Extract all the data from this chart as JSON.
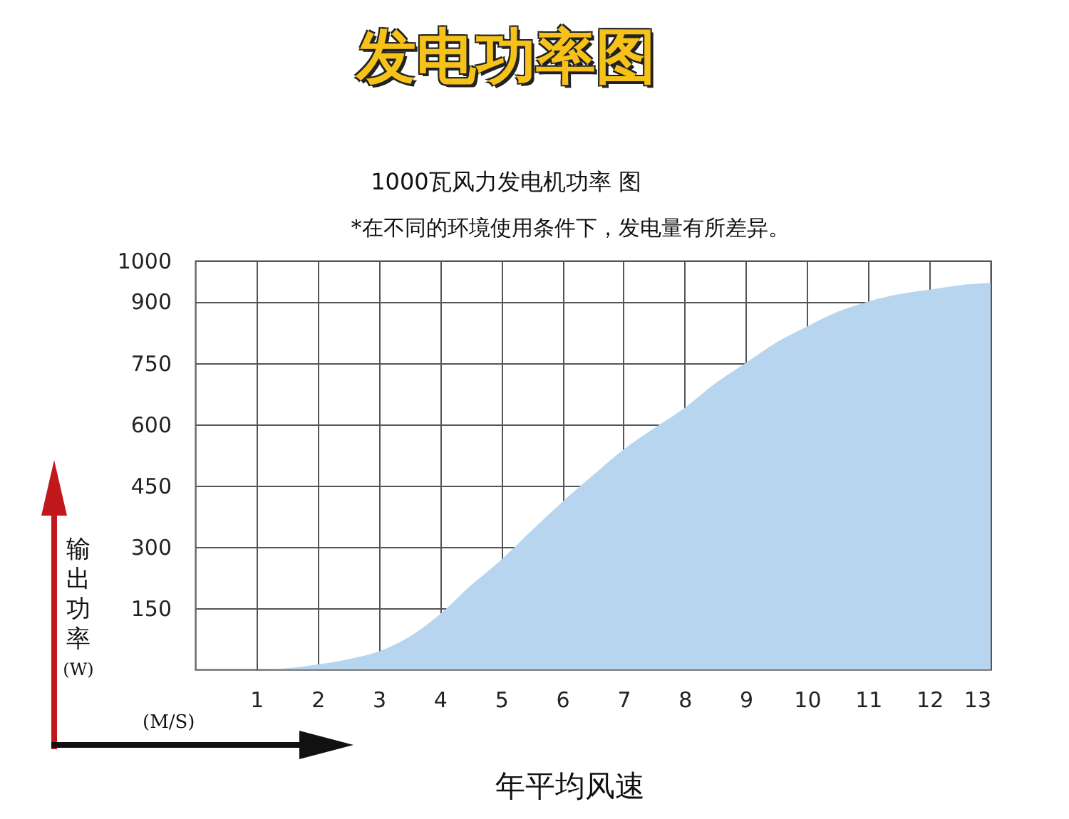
{
  "chart_data": {
    "type": "area",
    "title": "发电功率图",
    "subtitle": "1000瓦风力发电机功率 图",
    "annotations": [
      "*在不同的环境使用条件下，发电量有所差异。",
      "(M/S)"
    ],
    "xlabel": "年平均风速",
    "ylabel": "输出功率(W)",
    "x": [
      1,
      1.5,
      2,
      2.5,
      3,
      3.5,
      4,
      4.5,
      5,
      5.5,
      6,
      6.5,
      7,
      7.5,
      8,
      8.5,
      9,
      9.5,
      10,
      10.5,
      11,
      11.5,
      12,
      12.5,
      13
    ],
    "series": [
      {
        "color": "#b7d5ee",
        "values": [
          0,
          3,
          12,
          25,
          44,
          80,
          135,
          205,
          268,
          340,
          410,
          475,
          538,
          590,
          640,
          700,
          750,
          800,
          839,
          875,
          900,
          918,
          929,
          940,
          946
        ]
      }
    ],
    "xlim": [
      0,
      13
    ],
    "ylim": [
      0,
      1000
    ],
    "xticks": [
      1,
      2,
      3,
      4,
      5,
      6,
      7,
      8,
      9,
      10,
      11,
      12,
      13
    ],
    "yticks": [
      150,
      300,
      450,
      600,
      750,
      900,
      1000
    ],
    "grid": true
  }
}
